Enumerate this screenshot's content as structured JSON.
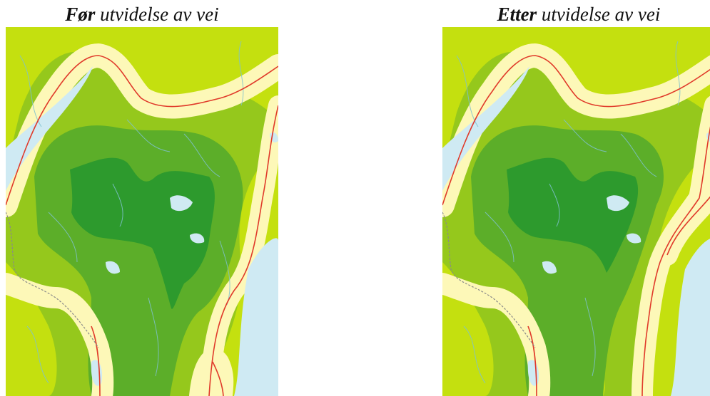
{
  "panels": [
    {
      "emphasis": "Før",
      "rest": " utvidelse av vei"
    },
    {
      "emphasis": "Etter",
      "rest": " utvidelse av vei"
    }
  ],
  "legend_colors": {
    "zone_far": "#2d9a2d",
    "zone_3": "#5cae29",
    "zone_2": "#95c81c",
    "zone_1": "#c4e00f",
    "road_buffer": "#fdf8b8",
    "water": "#cfeaf3",
    "road": "#e03a2a",
    "stream": "#7fc1cf",
    "boundary": "#8a8a8a"
  }
}
